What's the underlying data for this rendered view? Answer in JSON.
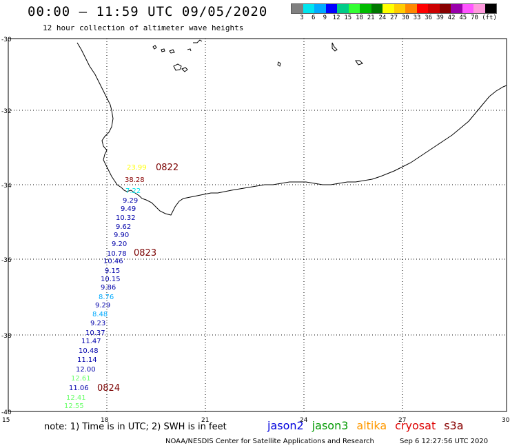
{
  "header": {
    "title": "00:00 – 11:59 UTC 09/05/2020",
    "subtitle": "12 hour collection of altimeter wave heights"
  },
  "legend": {
    "colors": [
      "#808080",
      "#00e5ee",
      "#00aaff",
      "#0000ff",
      "#00cc88",
      "#33ff33",
      "#00bb00",
      "#007700",
      "#ffff00",
      "#ffcc00",
      "#ff8800",
      "#ff0000",
      "#cc0000",
      "#880000",
      "#9900aa",
      "#ff55ff",
      "#ff99dd",
      "#000000"
    ],
    "labels": [
      "3",
      "6",
      "9",
      "12",
      "15",
      "18",
      "21",
      "24",
      "27",
      "30",
      "33",
      "36",
      "39",
      "42",
      "45",
      "70",
      "(ft)"
    ]
  },
  "axes": {
    "lon_labels": [
      "15",
      "18",
      "21",
      "24",
      "27",
      "30"
    ],
    "lat_labels": [
      "-30",
      "-32",
      "-34",
      "-36",
      "-38",
      "-40"
    ]
  },
  "observations": [
    {
      "value": "23.99",
      "color": "#ffff00"
    },
    {
      "value": "38.28",
      "color": "#880000"
    },
    {
      "value": "7.22",
      "color": "#00e5ee"
    },
    {
      "value": "9.29",
      "color": "#0000aa"
    },
    {
      "value": "9.49",
      "color": "#0000aa"
    },
    {
      "value": "10.32",
      "color": "#0000aa"
    },
    {
      "value": "9.62",
      "color": "#0000aa"
    },
    {
      "value": "9.90",
      "color": "#0000aa"
    },
    {
      "value": "9.20",
      "color": "#0000aa"
    },
    {
      "value": "10.78",
      "color": "#0000aa"
    },
    {
      "value": "10.46",
      "color": "#0000aa"
    },
    {
      "value": "9.15",
      "color": "#0000aa"
    },
    {
      "value": "10.15",
      "color": "#0000aa"
    },
    {
      "value": "9.86",
      "color": "#0000aa"
    },
    {
      "value": "8.76",
      "color": "#00aaff"
    },
    {
      "value": "9.29",
      "color": "#0000aa"
    },
    {
      "value": "8.48",
      "color": "#00aaff"
    },
    {
      "value": "9.23",
      "color": "#0000aa"
    },
    {
      "value": "10.37",
      "color": "#0000aa"
    },
    {
      "value": "11.47",
      "color": "#0000aa"
    },
    {
      "value": "10.48",
      "color": "#0000aa"
    },
    {
      "value": "11.14",
      "color": "#0000aa"
    },
    {
      "value": "12.00",
      "color": "#0000aa"
    },
    {
      "value": "12.61",
      "color": "#66ff66"
    },
    {
      "value": "11.06",
      "color": "#0000aa"
    },
    {
      "value": "12.41",
      "color": "#66ff66"
    },
    {
      "value": "12.55",
      "color": "#66ff66"
    }
  ],
  "pass_times": [
    "0822",
    "0823",
    "0824"
  ],
  "note": "note: 1) Time is in UTC; 2) SWH is in feet",
  "satellites": [
    {
      "name": "jason2",
      "color": "#0000dd"
    },
    {
      "name": "jason3",
      "color": "#009900"
    },
    {
      "name": "altika",
      "color": "#ff9900"
    },
    {
      "name": "cryosat",
      "color": "#dd0000"
    },
    {
      "name": "s3a",
      "color": "#880000"
    }
  ],
  "footer": {
    "left": "NOAA/NESDIS Center for Satellite Applications and Research",
    "right": "Sep  6 12:27:56 UTC 2020"
  }
}
